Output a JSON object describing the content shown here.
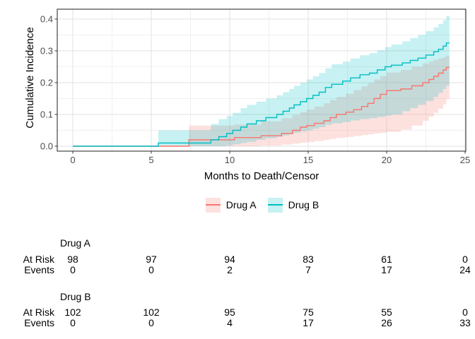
{
  "chart_data": {
    "type": "line",
    "subtype": "step-function-with-confidence-bands",
    "title": "",
    "xlabel": "Months to Death/Censor",
    "ylabel": "Cumulative Incidence",
    "xticks": [
      0,
      5,
      10,
      15,
      20,
      25
    ],
    "xtick_labels": [
      "0",
      "5",
      "10",
      "15",
      "20",
      "25"
    ],
    "yticks": [
      0.0,
      0.1,
      0.2,
      0.3,
      0.4
    ],
    "ytick_labels": [
      "0.0",
      "0.1",
      "0.2",
      "0.3",
      "0.4"
    ],
    "xlim": [
      -1,
      25.2
    ],
    "ylim": [
      -0.013,
      0.431
    ],
    "grid": "major-and-minor",
    "legend_position": "bottom",
    "curve_end_month": 24,
    "series": [
      {
        "name": "Drug A",
        "color": "#F8766D",
        "band_fill": "rgba(248,118,109,0.22)",
        "steps": [
          [
            0,
            0
          ],
          [
            7.4,
            0.02
          ],
          [
            10.3,
            0.027
          ],
          [
            12.0,
            0.033
          ],
          [
            13.3,
            0.04
          ],
          [
            14.0,
            0.05
          ],
          [
            14.5,
            0.06
          ],
          [
            14.9,
            0.065
          ],
          [
            15.4,
            0.072
          ],
          [
            16.0,
            0.08
          ],
          [
            16.4,
            0.09
          ],
          [
            16.8,
            0.1
          ],
          [
            17.4,
            0.107
          ],
          [
            17.9,
            0.115
          ],
          [
            18.4,
            0.125
          ],
          [
            18.8,
            0.135
          ],
          [
            19.2,
            0.15
          ],
          [
            19.6,
            0.163
          ],
          [
            20.0,
            0.175
          ],
          [
            20.9,
            0.18
          ],
          [
            21.6,
            0.19
          ],
          [
            22.3,
            0.2
          ],
          [
            22.7,
            0.21
          ],
          [
            23.0,
            0.22
          ],
          [
            23.3,
            0.23
          ],
          [
            23.6,
            0.24
          ],
          [
            23.8,
            0.248
          ]
        ],
        "band": [
          [
            7.4,
            0,
            0.065
          ],
          [
            10.3,
            0,
            0.068
          ],
          [
            12.0,
            0.002,
            0.078
          ],
          [
            13.3,
            0.005,
            0.088
          ],
          [
            14.0,
            0.008,
            0.098
          ],
          [
            14.5,
            0.011,
            0.107
          ],
          [
            14.9,
            0.013,
            0.115
          ],
          [
            15.4,
            0.016,
            0.125
          ],
          [
            16.0,
            0.02,
            0.135
          ],
          [
            16.4,
            0.023,
            0.145
          ],
          [
            16.8,
            0.026,
            0.155
          ],
          [
            17.4,
            0.029,
            0.165
          ],
          [
            17.9,
            0.032,
            0.177
          ],
          [
            18.4,
            0.035,
            0.188
          ],
          [
            18.8,
            0.037,
            0.198
          ],
          [
            19.2,
            0.04,
            0.21
          ],
          [
            19.6,
            0.042,
            0.22
          ],
          [
            20.0,
            0.045,
            0.232
          ],
          [
            20.9,
            0.052,
            0.24
          ],
          [
            21.6,
            0.065,
            0.25
          ],
          [
            22.3,
            0.08,
            0.26
          ],
          [
            22.7,
            0.093,
            0.266
          ],
          [
            23.0,
            0.105,
            0.272
          ],
          [
            23.3,
            0.118,
            0.276
          ],
          [
            23.6,
            0.132,
            0.28
          ],
          [
            23.8,
            0.148,
            0.285
          ]
        ]
      },
      {
        "name": "Drug B",
        "color": "#00BFC4",
        "band_fill": "rgba(0,191,196,0.22)",
        "steps": [
          [
            0,
            0
          ],
          [
            5.45,
            0.01
          ],
          [
            8.8,
            0.02
          ],
          [
            9.3,
            0.03
          ],
          [
            9.8,
            0.04
          ],
          [
            10.2,
            0.05
          ],
          [
            10.7,
            0.06
          ],
          [
            11.1,
            0.07
          ],
          [
            11.7,
            0.08
          ],
          [
            12.3,
            0.09
          ],
          [
            13.0,
            0.1
          ],
          [
            13.4,
            0.11
          ],
          [
            13.8,
            0.12
          ],
          [
            14.1,
            0.13
          ],
          [
            14.5,
            0.14
          ],
          [
            14.9,
            0.15
          ],
          [
            15.3,
            0.16
          ],
          [
            15.7,
            0.17
          ],
          [
            16.1,
            0.185
          ],
          [
            16.5,
            0.195
          ],
          [
            17.2,
            0.205
          ],
          [
            17.7,
            0.215
          ],
          [
            18.3,
            0.225
          ],
          [
            18.9,
            0.23
          ],
          [
            19.4,
            0.24
          ],
          [
            19.9,
            0.25
          ],
          [
            20.3,
            0.255
          ],
          [
            21.0,
            0.262
          ],
          [
            21.5,
            0.27
          ],
          [
            22.0,
            0.277
          ],
          [
            22.5,
            0.287
          ],
          [
            23.0,
            0.297
          ],
          [
            23.3,
            0.305
          ],
          [
            23.6,
            0.315
          ],
          [
            23.8,
            0.325
          ]
        ],
        "band": [
          [
            5.45,
            0,
            0.05
          ],
          [
            8.8,
            0,
            0.07
          ],
          [
            9.3,
            0,
            0.085
          ],
          [
            9.8,
            0.003,
            0.095
          ],
          [
            10.2,
            0.006,
            0.105
          ],
          [
            10.7,
            0.01,
            0.12
          ],
          [
            11.1,
            0.014,
            0.13
          ],
          [
            11.7,
            0.02,
            0.14
          ],
          [
            12.3,
            0.025,
            0.15
          ],
          [
            13.0,
            0.03,
            0.16
          ],
          [
            13.4,
            0.034,
            0.17
          ],
          [
            13.8,
            0.038,
            0.18
          ],
          [
            14.1,
            0.042,
            0.19
          ],
          [
            14.5,
            0.046,
            0.2
          ],
          [
            14.9,
            0.05,
            0.21
          ],
          [
            15.3,
            0.055,
            0.22
          ],
          [
            15.7,
            0.06,
            0.23
          ],
          [
            16.1,
            0.067,
            0.245
          ],
          [
            16.5,
            0.072,
            0.258
          ],
          [
            17.2,
            0.076,
            0.266
          ],
          [
            17.7,
            0.081,
            0.276
          ],
          [
            18.3,
            0.085,
            0.286
          ],
          [
            18.9,
            0.088,
            0.293
          ],
          [
            19.4,
            0.092,
            0.302
          ],
          [
            19.9,
            0.096,
            0.312
          ],
          [
            20.3,
            0.1,
            0.32
          ],
          [
            21.0,
            0.11,
            0.33
          ],
          [
            21.5,
            0.12,
            0.34
          ],
          [
            22.0,
            0.13,
            0.35
          ],
          [
            22.5,
            0.142,
            0.362
          ],
          [
            23.0,
            0.155,
            0.374
          ],
          [
            23.3,
            0.168,
            0.385
          ],
          [
            23.6,
            0.18,
            0.396
          ],
          [
            23.8,
            0.19,
            0.41
          ]
        ]
      }
    ],
    "colors": {
      "panel_border": "#333333",
      "grid_major": "#e2e2e2",
      "grid_minor": "#f0f0f0",
      "tick_text": "#4d4d4d",
      "title_text": "#000000"
    }
  },
  "legend": {
    "items": [
      {
        "label": "Drug A",
        "line_color": "#F8766D",
        "key_fill": "rgba(248,118,109,0.22)"
      },
      {
        "label": "Drug B",
        "line_color": "#00BFC4",
        "key_fill": "rgba(0,191,196,0.22)"
      }
    ]
  },
  "risk_table": {
    "time_points": [
      0,
      5,
      10,
      15,
      20,
      25
    ],
    "row_labels": {
      "at_risk": "At Risk",
      "events": "Events"
    },
    "groups": [
      {
        "name": "Drug A",
        "at_risk": [
          "98",
          "97",
          "94",
          "83",
          "61",
          "0"
        ],
        "events": [
          "0",
          "0",
          "2",
          "7",
          "17",
          "24"
        ]
      },
      {
        "name": "Drug B",
        "at_risk": [
          "102",
          "102",
          "95",
          "75",
          "55",
          "0"
        ],
        "events": [
          "0",
          "0",
          "4",
          "17",
          "26",
          "33"
        ]
      }
    ]
  }
}
